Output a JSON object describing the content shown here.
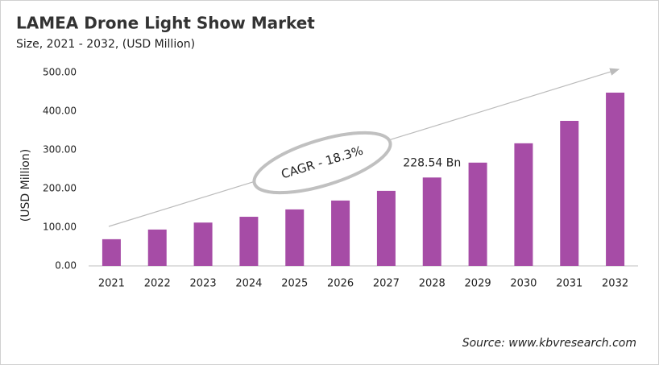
{
  "chart_data": {
    "type": "bar",
    "title": "LAMEA Drone Light Show Market",
    "subtitle": "Size, 2021 - 2032, (USD Million)",
    "y_label": "(USD Million)",
    "annotation": "CAGR - 18.3%",
    "source": "Source: www.kbvresearch.com",
    "categories": [
      "2021",
      "2022",
      "2023",
      "2024",
      "2025",
      "2026",
      "2027",
      "2028",
      "2029",
      "2030",
      "2031",
      "2032"
    ],
    "values": [
      69,
      94,
      112,
      127,
      146,
      169,
      194,
      228.54,
      267,
      317,
      375,
      448
    ],
    "value_labels": [
      null,
      null,
      null,
      null,
      null,
      null,
      null,
      "228.54 Bn",
      null,
      null,
      null,
      null
    ],
    "color": "#a64ca6",
    "ylim": [
      0,
      500
    ],
    "yticks": [
      {
        "value": 0,
        "label": "0.00"
      },
      {
        "value": 100,
        "label": "100.00"
      },
      {
        "value": 200,
        "label": "200.00"
      },
      {
        "value": 300,
        "label": "300.00"
      },
      {
        "value": 400,
        "label": "400.00"
      },
      {
        "value": 500,
        "label": "500.00"
      }
    ],
    "grid": false
  }
}
